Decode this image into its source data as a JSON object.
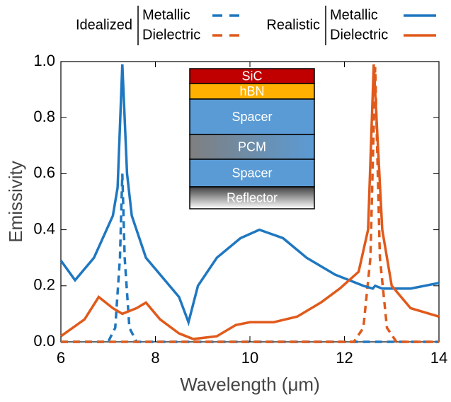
{
  "chart_data": {
    "type": "line",
    "x_label": "Wavelength (μm)",
    "y_label": "Emissivity",
    "xlim": [
      6,
      14
    ],
    "ylim": [
      0,
      1
    ],
    "xticks": [
      6,
      8,
      10,
      12,
      14
    ],
    "yticks": [
      {
        "value": 0,
        "label": "0.0"
      },
      0.2,
      0.4,
      0.6,
      0.8,
      {
        "value": 1,
        "label": "1.0"
      }
    ],
    "legend_groups": [
      "Idealized",
      "Realistic"
    ],
    "series": [
      {
        "name": "Metallic",
        "color": "#1f77c0",
        "dash": true,
        "x": [
          6,
          7.0,
          7.15,
          7.25,
          7.3,
          7.35,
          7.45,
          7.6,
          14
        ],
        "values": [
          0,
          0,
          0.05,
          0.3,
          0.6,
          0.3,
          0.05,
          0,
          0
        ]
      },
      {
        "name": "Dielectric",
        "color": "#e05a1b",
        "dash": true,
        "x": [
          6,
          12.2,
          12.4,
          12.55,
          12.65,
          12.75,
          12.9,
          13.1,
          14
        ],
        "values": [
          0,
          0,
          0.05,
          0.3,
          0.98,
          0.3,
          0.05,
          0,
          0
        ]
      },
      {
        "name": "Metallic",
        "color": "#1f77c0",
        "dash": false,
        "x": [
          6,
          6.3,
          6.7,
          7.1,
          7.2,
          7.3,
          7.4,
          7.5,
          7.8,
          8.2,
          8.5,
          8.7,
          8.9,
          9.3,
          9.8,
          10.2,
          10.7,
          11.2,
          11.8,
          12.4,
          12.6,
          12.65,
          12.8,
          13.4,
          14
        ],
        "values": [
          0.29,
          0.22,
          0.3,
          0.45,
          0.55,
          0.99,
          0.6,
          0.45,
          0.3,
          0.22,
          0.16,
          0.07,
          0.2,
          0.3,
          0.37,
          0.4,
          0.37,
          0.3,
          0.24,
          0.2,
          0.19,
          0.2,
          0.19,
          0.19,
          0.21
        ]
      },
      {
        "name": "Dielectric",
        "color": "#e05a1b",
        "dash": false,
        "x": [
          6,
          6.5,
          6.8,
          7.1,
          7.3,
          7.6,
          7.8,
          8.1,
          8.5,
          8.8,
          9.3,
          9.7,
          10,
          10.5,
          11,
          11.5,
          11.9,
          12.3,
          12.5,
          12.62,
          12.8,
          13,
          13.4,
          14
        ],
        "values": [
          0.02,
          0.08,
          0.16,
          0.12,
          0.1,
          0.12,
          0.14,
          0.08,
          0.03,
          0.01,
          0.02,
          0.06,
          0.07,
          0.07,
          0.09,
          0.14,
          0.19,
          0.25,
          0.4,
          0.99,
          0.4,
          0.2,
          0.12,
          0.09
        ]
      }
    ],
    "inset": {
      "layers": [
        "SiC",
        "hBN",
        "Spacer",
        "PCM",
        "Spacer",
        "Reflector"
      ]
    }
  }
}
